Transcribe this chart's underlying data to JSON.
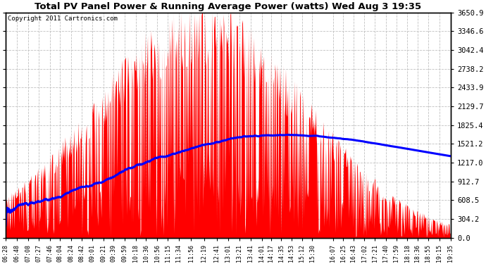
{
  "title": "Total PV Panel Power & Running Average Power (watts) Wed Aug 3 19:35",
  "copyright": "Copyright 2011 Cartronics.com",
  "background_color": "#ffffff",
  "plot_bg_color": "#ffffff",
  "grid_color": "#c0c0c0",
  "fill_color": "#ff0000",
  "line_color": "#0000ff",
  "y_ticks": [
    0.0,
    304.2,
    608.5,
    912.7,
    1217.0,
    1521.2,
    1825.4,
    2129.7,
    2433.9,
    2738.2,
    3042.4,
    3346.6,
    3650.9
  ],
  "ylim": [
    0,
    3650.9
  ],
  "x_labels": [
    "06:28",
    "06:48",
    "07:08",
    "07:27",
    "07:46",
    "08:04",
    "08:24",
    "08:42",
    "09:01",
    "09:21",
    "09:39",
    "09:59",
    "10:18",
    "10:36",
    "10:56",
    "11:15",
    "11:34",
    "11:56",
    "12:19",
    "12:41",
    "13:01",
    "13:21",
    "13:41",
    "14:01",
    "14:17",
    "14:35",
    "14:53",
    "15:12",
    "15:30",
    "16:07",
    "16:25",
    "16:43",
    "17:02",
    "17:21",
    "17:40",
    "17:59",
    "18:18",
    "18:36",
    "18:55",
    "19:15",
    "19:35"
  ],
  "peak_time_min": 345,
  "total_minutes": 787,
  "max_power": 3650.9,
  "avg_peak": 1700,
  "avg_peak_time": 440,
  "seed": 7
}
